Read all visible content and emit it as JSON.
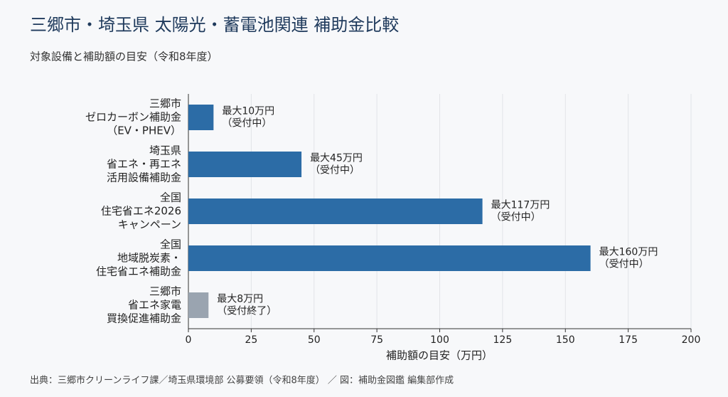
{
  "chart_data": {
    "type": "barh",
    "title": "三郷市・埼玉県 太陽光・蓄電池関連 補助金比較",
    "subtitle": "対象設備と補助額の目安（令和8年度）",
    "categories": [
      [
        "三郷市",
        "ゼロカーボン補助金",
        "（EV・PHEV）"
      ],
      [
        "埼玉県",
        "省エネ・再エネ",
        "活用設備補助金"
      ],
      [
        "全国",
        "住宅省エネ2026",
        "キャンペーン"
      ],
      [
        "全国",
        "地域脱炭素・",
        "住宅省エネ補助金"
      ],
      [
        "三郷市",
        "省エネ家電",
        "買換促進補助金"
      ]
    ],
    "values": [
      10,
      45,
      117,
      160,
      8
    ],
    "value_labels": [
      [
        "最大10万円",
        "（受付中）"
      ],
      [
        "最大45万円",
        "（受付中）"
      ],
      [
        "最大117万円",
        "（受付中）"
      ],
      [
        "最大160万円",
        "（受付中）"
      ],
      [
        "最大8万円",
        "（受付終了）"
      ]
    ],
    "colors": [
      "#2c6ca6",
      "#2c6ca6",
      "#2c6ca6",
      "#2c6ca6",
      "#9aa4b0"
    ],
    "xlabel": "補助額の目安（万円）",
    "xlim": [
      0,
      200
    ],
    "xticks": [
      0,
      25,
      50,
      75,
      100,
      125,
      150,
      175,
      200
    ],
    "grid": true,
    "source": "出典：三郷市クリーンライフ課／埼玉県環境部 公募要領（令和8年度） ／ 図：補助金図鑑 編集部作成"
  }
}
